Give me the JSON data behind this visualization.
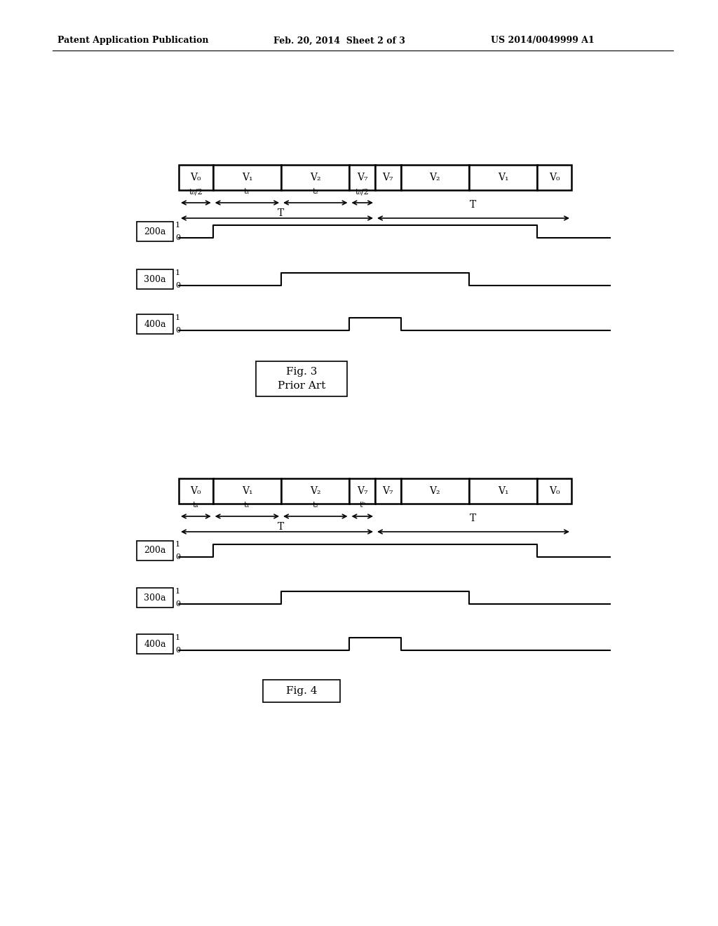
{
  "bg_color": "#ffffff",
  "header_text_left": "Patent Application Publication",
  "header_text_mid": "Feb. 20, 2014  Sheet 2 of 3",
  "header_text_right": "US 2014/0049999 A1",
  "seg_labels_top": [
    "V₀",
    "V₁",
    "V₂",
    "V₇",
    "V₇",
    "V₂",
    "V₁",
    "V₀"
  ],
  "seg_widths": [
    1,
    2,
    2,
    0.75,
    0.75,
    2,
    2,
    1
  ],
  "arrow_labels_fig3": [
    "t₀/2",
    "t₁",
    "t₂",
    "t₀/2"
  ],
  "arrow_labels_fig4": [
    "tₐ",
    "t₁",
    "t₂",
    "tᵇ"
  ],
  "signal_labels": [
    "200a",
    "300a",
    "400a"
  ]
}
